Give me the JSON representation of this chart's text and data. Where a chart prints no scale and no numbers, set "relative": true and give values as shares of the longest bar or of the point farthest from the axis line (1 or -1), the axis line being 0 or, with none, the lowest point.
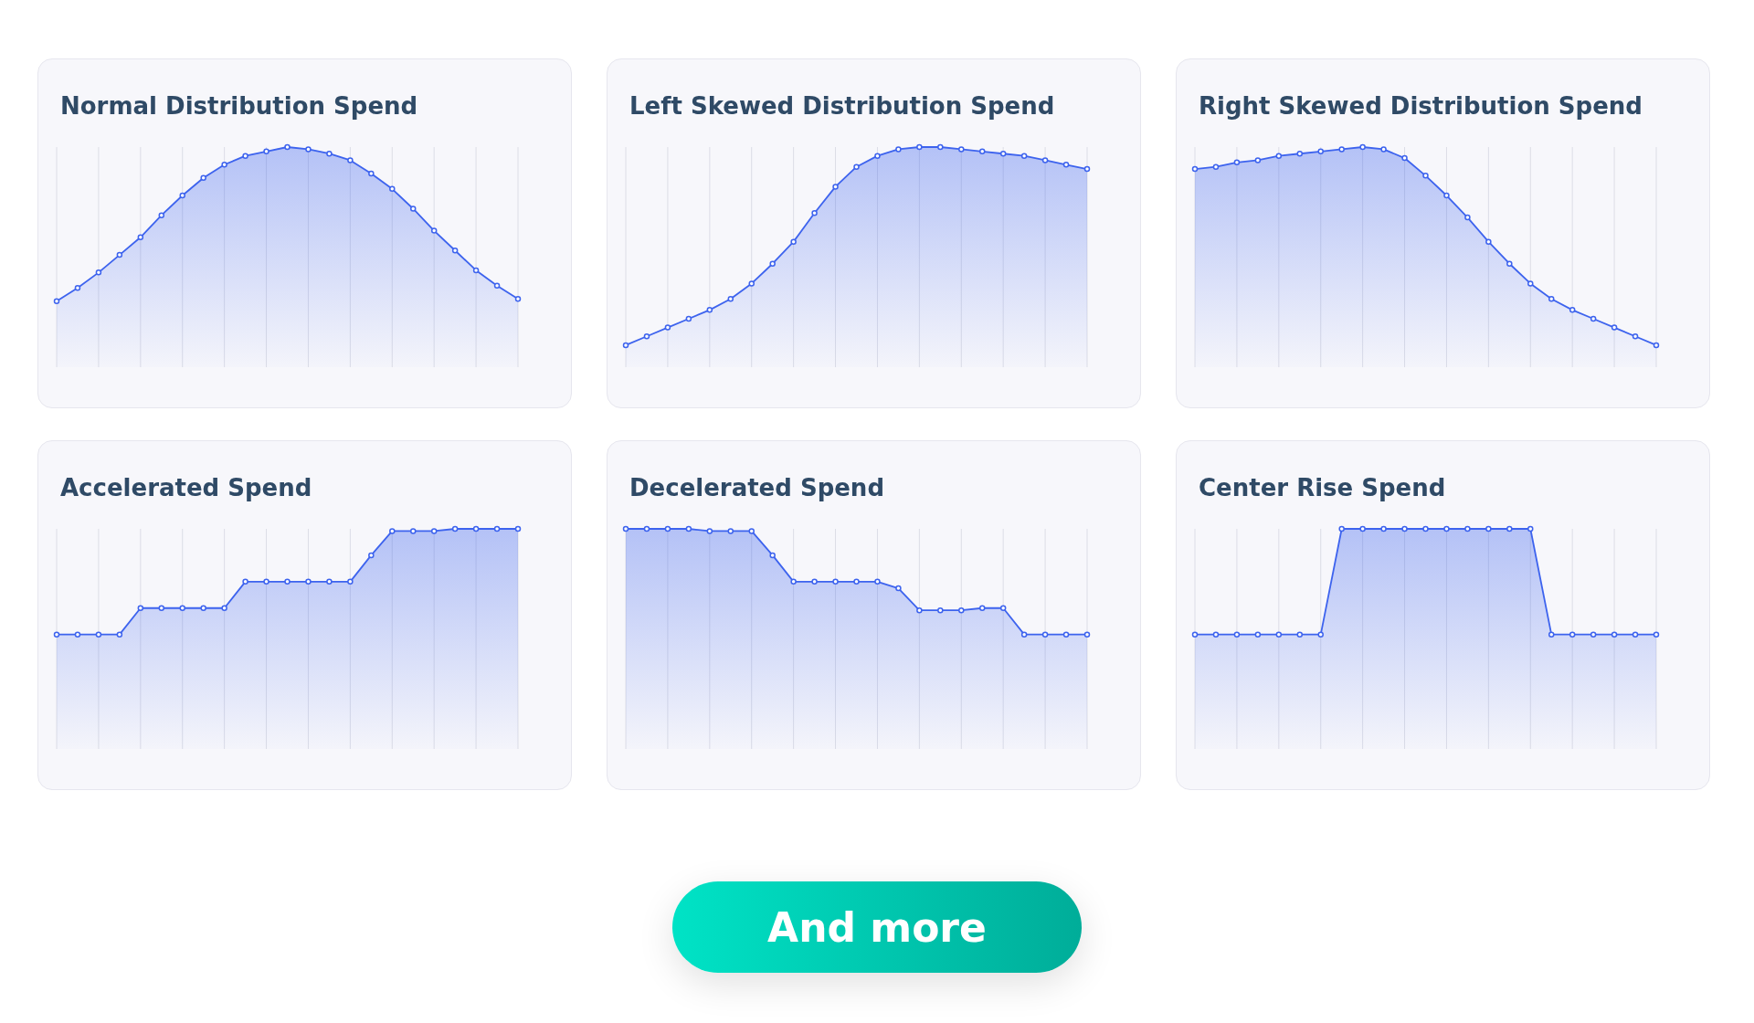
{
  "chart_data": [
    {
      "type": "area",
      "title": "Normal Distribution Spend",
      "relative": true,
      "color": "#3d63ee",
      "grid": "x",
      "marker": "circle",
      "tick_labels": false,
      "categories": [
        null,
        null,
        null,
        null,
        null,
        null,
        null,
        null,
        null,
        null,
        null,
        null,
        null,
        null,
        null,
        null,
        null,
        null,
        null,
        null,
        null,
        null,
        null
      ],
      "values": [
        0.3,
        0.36,
        0.43,
        0.51,
        0.59,
        0.69,
        0.78,
        0.86,
        0.92,
        0.96,
        0.98,
        1,
        0.99,
        0.97,
        0.94,
        0.88,
        0.81,
        0.72,
        0.62,
        0.53,
        0.44,
        0.37,
        0.31
      ]
    },
    {
      "type": "area",
      "title": "Left Skewed Distribution Spend",
      "relative": true,
      "color": "#3d63ee",
      "grid": "x",
      "marker": "circle",
      "tick_labels": false,
      "categories": [
        null,
        null,
        null,
        null,
        null,
        null,
        null,
        null,
        null,
        null,
        null,
        null,
        null,
        null,
        null,
        null,
        null,
        null,
        null,
        null,
        null,
        null,
        null
      ],
      "values": [
        0.1,
        0.14,
        0.18,
        0.22,
        0.26,
        0.31,
        0.38,
        0.47,
        0.57,
        0.7,
        0.82,
        0.91,
        0.96,
        0.99,
        1,
        1,
        0.99,
        0.98,
        0.97,
        0.96,
        0.94,
        0.92,
        0.9
      ]
    },
    {
      "type": "area",
      "title": "Right Skewed Distribution Spend",
      "relative": true,
      "color": "#3d63ee",
      "grid": "x",
      "marker": "circle",
      "tick_labels": false,
      "categories": [
        null,
        null,
        null,
        null,
        null,
        null,
        null,
        null,
        null,
        null,
        null,
        null,
        null,
        null,
        null,
        null,
        null,
        null,
        null,
        null,
        null,
        null,
        null
      ],
      "values": [
        0.9,
        0.91,
        0.93,
        0.94,
        0.96,
        0.97,
        0.98,
        0.99,
        1,
        0.99,
        0.95,
        0.87,
        0.78,
        0.68,
        0.57,
        0.47,
        0.38,
        0.31,
        0.26,
        0.22,
        0.18,
        0.14,
        0.1
      ]
    },
    {
      "type": "area",
      "title": "Accelerated Spend",
      "relative": true,
      "color": "#3d63ee",
      "grid": "x",
      "marker": "circle",
      "tick_labels": false,
      "categories": [
        null,
        null,
        null,
        null,
        null,
        null,
        null,
        null,
        null,
        null,
        null,
        null,
        null,
        null,
        null,
        null,
        null,
        null,
        null,
        null,
        null,
        null,
        null
      ],
      "values": [
        0.52,
        0.52,
        0.52,
        0.52,
        0.64,
        0.64,
        0.64,
        0.64,
        0.64,
        0.76,
        0.76,
        0.76,
        0.76,
        0.76,
        0.76,
        0.88,
        0.99,
        0.99,
        0.99,
        1,
        1,
        1,
        1
      ]
    },
    {
      "type": "area",
      "title": "Decelerated Spend",
      "relative": true,
      "color": "#3d63ee",
      "grid": "x",
      "marker": "circle",
      "tick_labels": false,
      "categories": [
        null,
        null,
        null,
        null,
        null,
        null,
        null,
        null,
        null,
        null,
        null,
        null,
        null,
        null,
        null,
        null,
        null,
        null,
        null,
        null,
        null,
        null,
        null
      ],
      "values": [
        1,
        1,
        1,
        1,
        0.99,
        0.99,
        0.99,
        0.88,
        0.76,
        0.76,
        0.76,
        0.76,
        0.76,
        0.73,
        0.63,
        0.63,
        0.63,
        0.64,
        0.64,
        0.52,
        0.52,
        0.52,
        0.52
      ]
    },
    {
      "type": "area",
      "title": "Center Rise Spend",
      "relative": true,
      "color": "#3d63ee",
      "grid": "x",
      "marker": "circle",
      "tick_labels": false,
      "categories": [
        null,
        null,
        null,
        null,
        null,
        null,
        null,
        null,
        null,
        null,
        null,
        null,
        null,
        null,
        null,
        null,
        null,
        null,
        null,
        null,
        null,
        null,
        null
      ],
      "values": [
        0.52,
        0.52,
        0.52,
        0.52,
        0.52,
        0.52,
        0.52,
        1,
        1,
        1,
        1,
        1,
        1,
        1,
        1,
        1,
        1,
        0.52,
        0.52,
        0.52,
        0.52,
        0.52,
        0.52
      ]
    },
    {
      "type": "other",
      "annotations": [
        "And more"
      ]
    }
  ]
}
